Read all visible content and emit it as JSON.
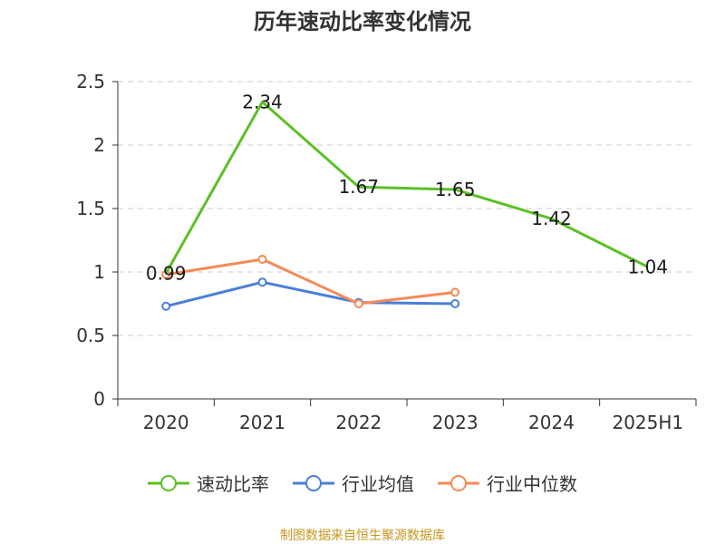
{
  "chart_data": {
    "type": "line",
    "title": "历年速动比率变化情况",
    "categories": [
      "2020",
      "2021",
      "2022",
      "2023",
      "2024",
      "2025H1"
    ],
    "ylim": [
      0,
      2.5
    ],
    "yticks": [
      "0",
      "0.5",
      "1",
      "1.5",
      "2",
      "2.5"
    ],
    "grid": true,
    "legend_position": "bottom",
    "series": [
      {
        "name": "速动比率",
        "color": "#5cc024",
        "values": [
          0.99,
          2.34,
          1.67,
          1.65,
          1.42,
          1.04
        ],
        "labels": [
          "0.99",
          "2.34",
          "1.67",
          "1.65",
          "1.42",
          "1.04"
        ],
        "show_markers": false
      },
      {
        "name": "行业均值",
        "color": "#4a7fd9",
        "values": [
          0.73,
          0.92,
          0.76,
          0.75,
          null,
          null
        ],
        "show_markers": true
      },
      {
        "name": "行业中位数",
        "color": "#f58a56",
        "values": [
          0.98,
          1.1,
          0.75,
          0.84,
          null,
          null
        ],
        "show_markers": true
      }
    ]
  },
  "source": "制图数据来自恒生聚源数据库"
}
